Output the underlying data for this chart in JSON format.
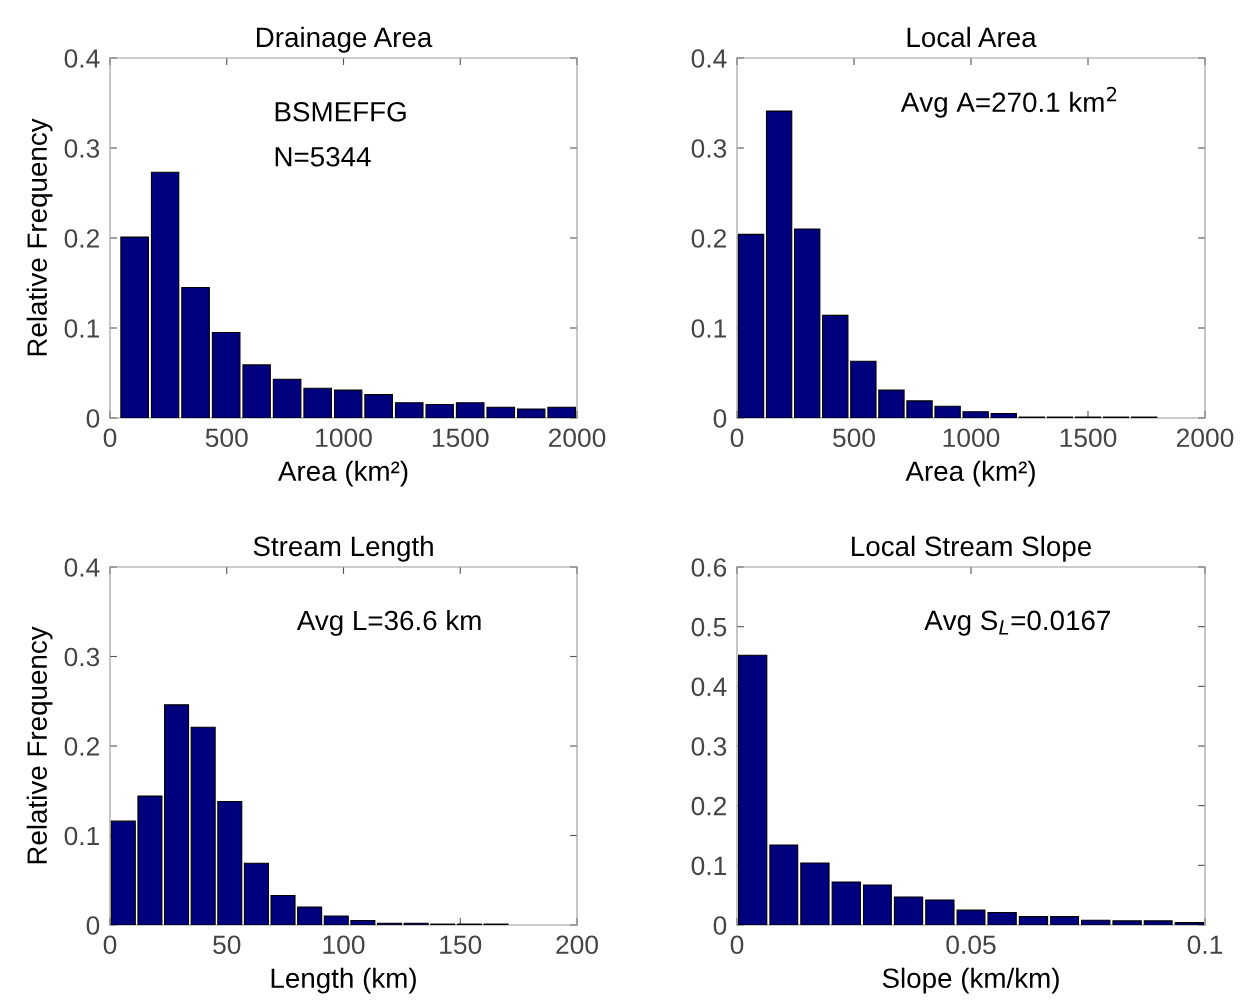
{
  "chart_data": [
    {
      "type": "histogram",
      "title": "Drainage Area",
      "xlabel": "Area (km²)",
      "ylabel": "Relative Frequency",
      "color": "#00007f",
      "bins": [
        40,
        171,
        301,
        432,
        563,
        693,
        824,
        955,
        1085,
        1216,
        1347,
        1477,
        1608,
        1739,
        1869,
        2000
      ],
      "values": [
        0.201,
        0.273,
        0.145,
        0.095,
        0.059,
        0.043,
        0.033,
        0.031,
        0.026,
        0.017,
        0.015,
        0.017,
        0.012,
        0.01,
        0.012
      ],
      "xlim": [
        0,
        2000
      ],
      "xticks": [
        0,
        500,
        1000,
        1500,
        2000
      ],
      "ylim": [
        0,
        0.4
      ],
      "yticks": [
        0,
        0.1,
        0.2,
        0.3,
        0.4
      ],
      "annotations": [
        "BSMEFFG",
        "N=5344"
      ]
    },
    {
      "type": "histogram",
      "title": "Local Area",
      "xlabel": "Area (km²)",
      "color": "#00007f",
      "bins": [
        0,
        120,
        240,
        360,
        480,
        600,
        720,
        840,
        960,
        1080,
        1200,
        1320,
        1440,
        1560,
        1680,
        1800
      ],
      "values": [
        0.204,
        0.341,
        0.21,
        0.114,
        0.063,
        0.031,
        0.019,
        0.013,
        0.007,
        0.005,
        0.001,
        0.001,
        0.001,
        0.001,
        0.001
      ],
      "xlim": [
        0,
        2000
      ],
      "xticks": [
        0,
        500,
        1000,
        1500,
        2000
      ],
      "ylim": [
        0,
        0.4
      ],
      "yticks": [
        0,
        0.1,
        0.2,
        0.3,
        0.4
      ],
      "annotations": [
        "Avg A=270.1 km$^{2}$"
      ]
    },
    {
      "type": "histogram",
      "title": "Stream Length",
      "xlabel": "Length (km)",
      "ylabel": "Relative Frequency",
      "color": "#00007f",
      "bins": [
        0,
        11.4,
        22.8,
        34.2,
        45.6,
        57,
        68.4,
        79.8,
        91.2,
        102.6,
        114,
        125.4,
        136.8,
        148.2,
        159.6,
        171
      ],
      "values": [
        0.116,
        0.144,
        0.246,
        0.221,
        0.138,
        0.069,
        0.033,
        0.02,
        0.01,
        0.005,
        0.002,
        0.002,
        0.001,
        0.001,
        0.001
      ],
      "xlim": [
        0,
        200
      ],
      "xticks": [
        0,
        50,
        100,
        150,
        200
      ],
      "ylim": [
        0,
        0.4
      ],
      "yticks": [
        0,
        0.1,
        0.2,
        0.3,
        0.4
      ],
      "annotations": [
        "Avg L=36.6 km"
      ]
    },
    {
      "type": "histogram",
      "title": "Local Stream Slope",
      "xlabel": "Slope (km/km)",
      "color": "#00007f",
      "bins": [
        0,
        0.0067,
        0.0133,
        0.02,
        0.0267,
        0.0333,
        0.04,
        0.0467,
        0.0533,
        0.06,
        0.0667,
        0.0733,
        0.08,
        0.0867,
        0.0933,
        0.1
      ],
      "values": [
        0.452,
        0.134,
        0.104,
        0.072,
        0.067,
        0.047,
        0.042,
        0.025,
        0.021,
        0.014,
        0.014,
        0.008,
        0.007,
        0.007,
        0.004
      ],
      "xlim": [
        0,
        0.1
      ],
      "xticks": [
        0,
        0.05,
        0.1
      ],
      "ylim": [
        0,
        0.6
      ],
      "yticks": [
        0,
        0.1,
        0.2,
        0.3,
        0.4,
        0.5,
        0.6
      ],
      "annotations": [
        "Avg S$_{L}$=0.0167"
      ]
    }
  ]
}
